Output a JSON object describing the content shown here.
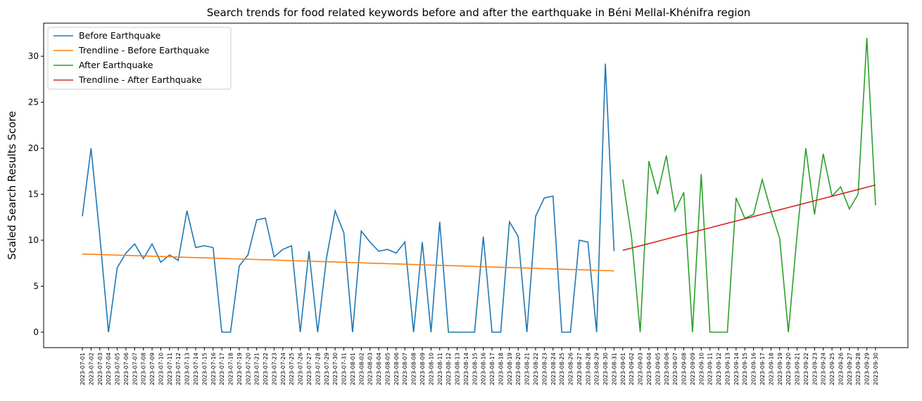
{
  "chart_data": {
    "type": "line",
    "title": "Search trends for food related keywords before and after the earthquake in Béni Mellal-Khénifra region",
    "ylabel": "Scaled Search Results Score",
    "categories": [
      "2023-07-01",
      "2023-07-02",
      "2023-07-03",
      "2023-07-04",
      "2023-07-05",
      "2023-07-06",
      "2023-07-07",
      "2023-07-08",
      "2023-07-09",
      "2023-07-10",
      "2023-07-11",
      "2023-07-12",
      "2023-07-13",
      "2023-07-14",
      "2023-07-15",
      "2023-07-16",
      "2023-07-17",
      "2023-07-18",
      "2023-07-19",
      "2023-07-20",
      "2023-07-21",
      "2023-07-22",
      "2023-07-23",
      "2023-07-24",
      "2023-07-25",
      "2023-07-26",
      "2023-07-27",
      "2023-07-28",
      "2023-07-29",
      "2023-07-30",
      "2023-07-31",
      "2023-08-01",
      "2023-08-02",
      "2023-08-03",
      "2023-08-04",
      "2023-08-05",
      "2023-08-06",
      "2023-08-07",
      "2023-08-08",
      "2023-08-09",
      "2023-08-10",
      "2023-08-11",
      "2023-08-12",
      "2023-08-13",
      "2023-08-14",
      "2023-08-15",
      "2023-08-16",
      "2023-08-17",
      "2023-08-18",
      "2023-08-19",
      "2023-08-20",
      "2023-08-21",
      "2023-08-22",
      "2023-08-23",
      "2023-08-24",
      "2023-08-25",
      "2023-08-26",
      "2023-08-27",
      "2023-08-28",
      "2023-08-29",
      "2023-08-30",
      "2023-08-31",
      "2023-09-01",
      "2023-09-02",
      "2023-09-03",
      "2023-09-04",
      "2023-09-05",
      "2023-09-06",
      "2023-09-07",
      "2023-09-08",
      "2023-09-09",
      "2023-09-10",
      "2023-09-11",
      "2023-09-12",
      "2023-09-13",
      "2023-09-14",
      "2023-09-15",
      "2023-09-16",
      "2023-09-17",
      "2023-09-18",
      "2023-09-19",
      "2023-09-20",
      "2023-09-21",
      "2023-09-22",
      "2023-09-23",
      "2023-09-24",
      "2023-09-25",
      "2023-09-26",
      "2023-09-27",
      "2023-09-28",
      "2023-09-29",
      "2023-09-30"
    ],
    "series": [
      {
        "name": "Before Earthquake",
        "color": "#1f77b4",
        "values": [
          12.6,
          20,
          10.5,
          0,
          7,
          8.6,
          9.6,
          8,
          9.6,
          7.6,
          8.4,
          7.8,
          13.2,
          9.2,
          9.4,
          9.2,
          0,
          0,
          7.2,
          8.4,
          12.2,
          12.4,
          8.2,
          9,
          9.4,
          0,
          8.8,
          0,
          8,
          13.2,
          10.8,
          0,
          11,
          9.8,
          8.8,
          9,
          8.6,
          9.8,
          0,
          9.8,
          0,
          12,
          0,
          0,
          0,
          0,
          10.4,
          0,
          0,
          12,
          10.4,
          0,
          12.6,
          14.6,
          14.8,
          0,
          0,
          10,
          9.8,
          0,
          29.2,
          8.8,
          null,
          null,
          null,
          null,
          null,
          null,
          null,
          null,
          null,
          null,
          null,
          null,
          null,
          null,
          null,
          null,
          null,
          null,
          null,
          null,
          null,
          null,
          null,
          null,
          null,
          null,
          null,
          null,
          null,
          null
        ]
      },
      {
        "name": "Trendline - Before Earthquake",
        "color": "#ff7f0e",
        "values": [
          8.5,
          8.47,
          8.44,
          8.41,
          8.38,
          8.35,
          8.32,
          8.29,
          8.26,
          8.23,
          8.2,
          8.17,
          8.14,
          8.11,
          8.08,
          8.05,
          8.02,
          7.99,
          7.96,
          7.93,
          7.9,
          7.87,
          7.84,
          7.81,
          7.78,
          7.75,
          7.72,
          7.69,
          7.66,
          7.63,
          7.6,
          7.57,
          7.54,
          7.51,
          7.48,
          7.45,
          7.42,
          7.39,
          7.36,
          7.33,
          7.3,
          7.27,
          7.24,
          7.21,
          7.18,
          7.15,
          7.12,
          7.09,
          7.06,
          7.03,
          7.0,
          6.97,
          6.94,
          6.91,
          6.88,
          6.85,
          6.82,
          6.79,
          6.76,
          6.73,
          6.7,
          6.67,
          null,
          null,
          null,
          null,
          null,
          null,
          null,
          null,
          null,
          null,
          null,
          null,
          null,
          null,
          null,
          null,
          null,
          null,
          null,
          null,
          null,
          null,
          null,
          null,
          null,
          null,
          null,
          null,
          null,
          null
        ]
      },
      {
        "name": "After Earthquake",
        "color": "#2ca02c",
        "values": [
          null,
          null,
          null,
          null,
          null,
          null,
          null,
          null,
          null,
          null,
          null,
          null,
          null,
          null,
          null,
          null,
          null,
          null,
          null,
          null,
          null,
          null,
          null,
          null,
          null,
          null,
          null,
          null,
          null,
          null,
          null,
          null,
          null,
          null,
          null,
          null,
          null,
          null,
          null,
          null,
          null,
          null,
          null,
          null,
          null,
          null,
          null,
          null,
          null,
          null,
          null,
          null,
          null,
          null,
          null,
          null,
          null,
          null,
          null,
          null,
          null,
          null,
          16.6,
          10.4,
          0,
          18.6,
          15,
          19.2,
          13.2,
          15.2,
          0,
          17.2,
          0,
          0,
          0,
          14.6,
          12.4,
          12.8,
          16.6,
          13.2,
          10.2,
          0,
          10.6,
          20,
          12.8,
          19.4,
          14.8,
          15.8,
          13.4,
          15,
          32,
          13.8
        ]
      },
      {
        "name": "Trendline - After Earthquake",
        "color": "#d62728",
        "values": [
          null,
          null,
          null,
          null,
          null,
          null,
          null,
          null,
          null,
          null,
          null,
          null,
          null,
          null,
          null,
          null,
          null,
          null,
          null,
          null,
          null,
          null,
          null,
          null,
          null,
          null,
          null,
          null,
          null,
          null,
          null,
          null,
          null,
          null,
          null,
          null,
          null,
          null,
          null,
          null,
          null,
          null,
          null,
          null,
          null,
          null,
          null,
          null,
          null,
          null,
          null,
          null,
          null,
          null,
          null,
          null,
          null,
          null,
          null,
          null,
          null,
          null,
          8.9,
          9.145,
          9.39,
          9.635,
          9.88,
          10.125,
          10.37,
          10.615,
          10.86,
          11.105,
          11.35,
          11.595,
          11.84,
          12.085,
          12.33,
          12.575,
          12.82,
          13.065,
          13.31,
          13.555,
          13.8,
          14.045,
          14.29,
          14.535,
          14.78,
          15.025,
          15.27,
          15.515,
          15.76,
          16.005
        ]
      }
    ],
    "ylim": [
      -1.68,
      33.6
    ],
    "yticks": [
      0,
      5,
      10,
      15,
      20,
      25,
      30
    ],
    "grid": false,
    "legend": "upper left"
  }
}
